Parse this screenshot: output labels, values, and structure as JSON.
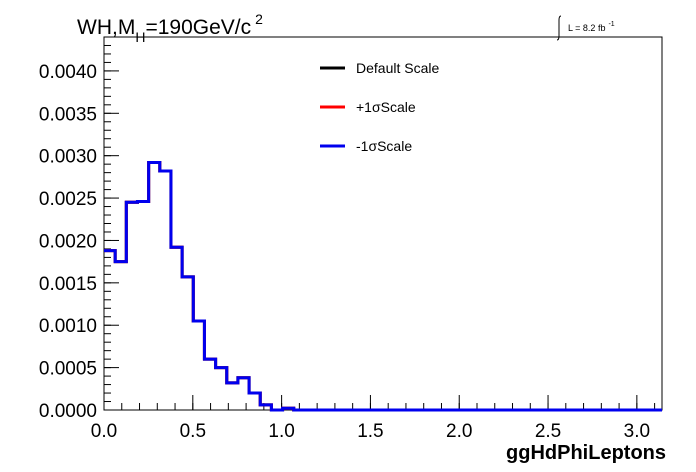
{
  "chart_data": {
    "type": "line",
    "title": {
      "main": "WH,M",
      "subscript": "H",
      "rest": "=190GeV/c",
      "superscript": "2"
    },
    "lumi_label": "L = 8.2 fb",
    "lumi_superscript": "-1",
    "xlabel": "ggHdPhiLeptons",
    "ylabel": "",
    "xlim": [
      0,
      3.1416
    ],
    "ylim": [
      0,
      0.0044
    ],
    "x_ticks": [
      0.0,
      0.5,
      1.0,
      1.5,
      2.0,
      2.5,
      3.0
    ],
    "x_tick_labels": [
      "0.0",
      "0.5",
      "1.0",
      "1.5",
      "2.0",
      "2.5",
      "3.0"
    ],
    "y_ticks": [
      0.0,
      0.0005,
      0.001,
      0.0015,
      0.002,
      0.0025,
      0.003,
      0.0035,
      0.004
    ],
    "y_tick_labels": [
      "0.0000",
      "0.0005",
      "0.0010",
      "0.0015",
      "0.0020",
      "0.0025",
      "0.0030",
      "0.0035",
      "0.0040"
    ],
    "grid": false,
    "legend_position": "top-center",
    "bin_edges": [
      0.0,
      0.0628,
      0.1257,
      0.1885,
      0.2513,
      0.3142,
      0.377,
      0.4398,
      0.5027,
      0.5655,
      0.6283,
      0.6912,
      0.754,
      0.8168,
      0.8796,
      0.9425,
      1.0053,
      1.0681,
      1.131,
      1.1938,
      1.2566,
      1.3195,
      1.3823,
      1.4451,
      1.508,
      1.5708,
      1.6336,
      1.6965,
      1.7593,
      1.8221,
      1.885,
      1.9478,
      2.0106,
      2.0735,
      2.1363,
      2.1991,
      2.2619,
      2.3248,
      2.3876,
      2.4504,
      2.5133,
      2.5761,
      2.6389,
      2.7018,
      2.7646,
      2.8274,
      2.8903,
      2.9531,
      3.0159,
      3.0788,
      3.1416
    ],
    "series": [
      {
        "name": "Default Scale",
        "color": "#000000",
        "values": [
          0.00188,
          0.00175,
          0.00245,
          0.00246,
          0.00292,
          0.00282,
          0.00192,
          0.00157,
          0.00105,
          0.0006,
          0.0005,
          0.00032,
          0.00038,
          0.0002,
          6e-05,
          0.0,
          2e-05,
          0.0,
          0.0,
          0.0,
          0.0,
          0.0,
          0.0,
          0.0,
          0.0,
          0.0,
          0.0,
          0.0,
          0.0,
          0.0,
          0.0,
          0.0,
          0.0,
          0.0,
          0.0,
          0.0,
          0.0,
          0.0,
          0.0,
          0.0,
          0.0,
          0.0,
          0.0,
          0.0,
          0.0,
          0.0,
          0.0,
          0.0,
          0.0,
          0.0
        ]
      },
      {
        "name": "+1σScale",
        "color": "#ff0000",
        "values": [
          0.00188,
          0.00175,
          0.00245,
          0.00246,
          0.00292,
          0.00282,
          0.00192,
          0.00157,
          0.00105,
          0.0006,
          0.0005,
          0.00032,
          0.00038,
          0.0002,
          6e-05,
          0.0,
          2e-05,
          0.0,
          0.0,
          0.0,
          0.0,
          0.0,
          0.0,
          0.0,
          0.0,
          0.0,
          0.0,
          0.0,
          0.0,
          0.0,
          0.0,
          0.0,
          0.0,
          0.0,
          0.0,
          0.0,
          0.0,
          0.0,
          0.0,
          0.0,
          0.0,
          0.0,
          0.0,
          0.0,
          0.0,
          0.0,
          0.0,
          0.0,
          0.0,
          0.0
        ]
      },
      {
        "name": "-1σScale",
        "color": "#0000ee",
        "values": [
          0.00188,
          0.00175,
          0.00245,
          0.00246,
          0.00292,
          0.00282,
          0.00192,
          0.00157,
          0.00105,
          0.0006,
          0.0005,
          0.00032,
          0.00038,
          0.0002,
          6e-05,
          0.0,
          2e-05,
          0.0,
          0.0,
          0.0,
          0.0,
          0.0,
          0.0,
          0.0,
          0.0,
          0.0,
          0.0,
          0.0,
          0.0,
          0.0,
          0.0,
          0.0,
          0.0,
          0.0,
          0.0,
          0.0,
          0.0,
          0.0,
          0.0,
          0.0,
          0.0,
          0.0,
          0.0,
          0.0,
          0.0,
          0.0,
          0.0,
          0.0,
          0.0,
          0.0
        ]
      }
    ]
  }
}
